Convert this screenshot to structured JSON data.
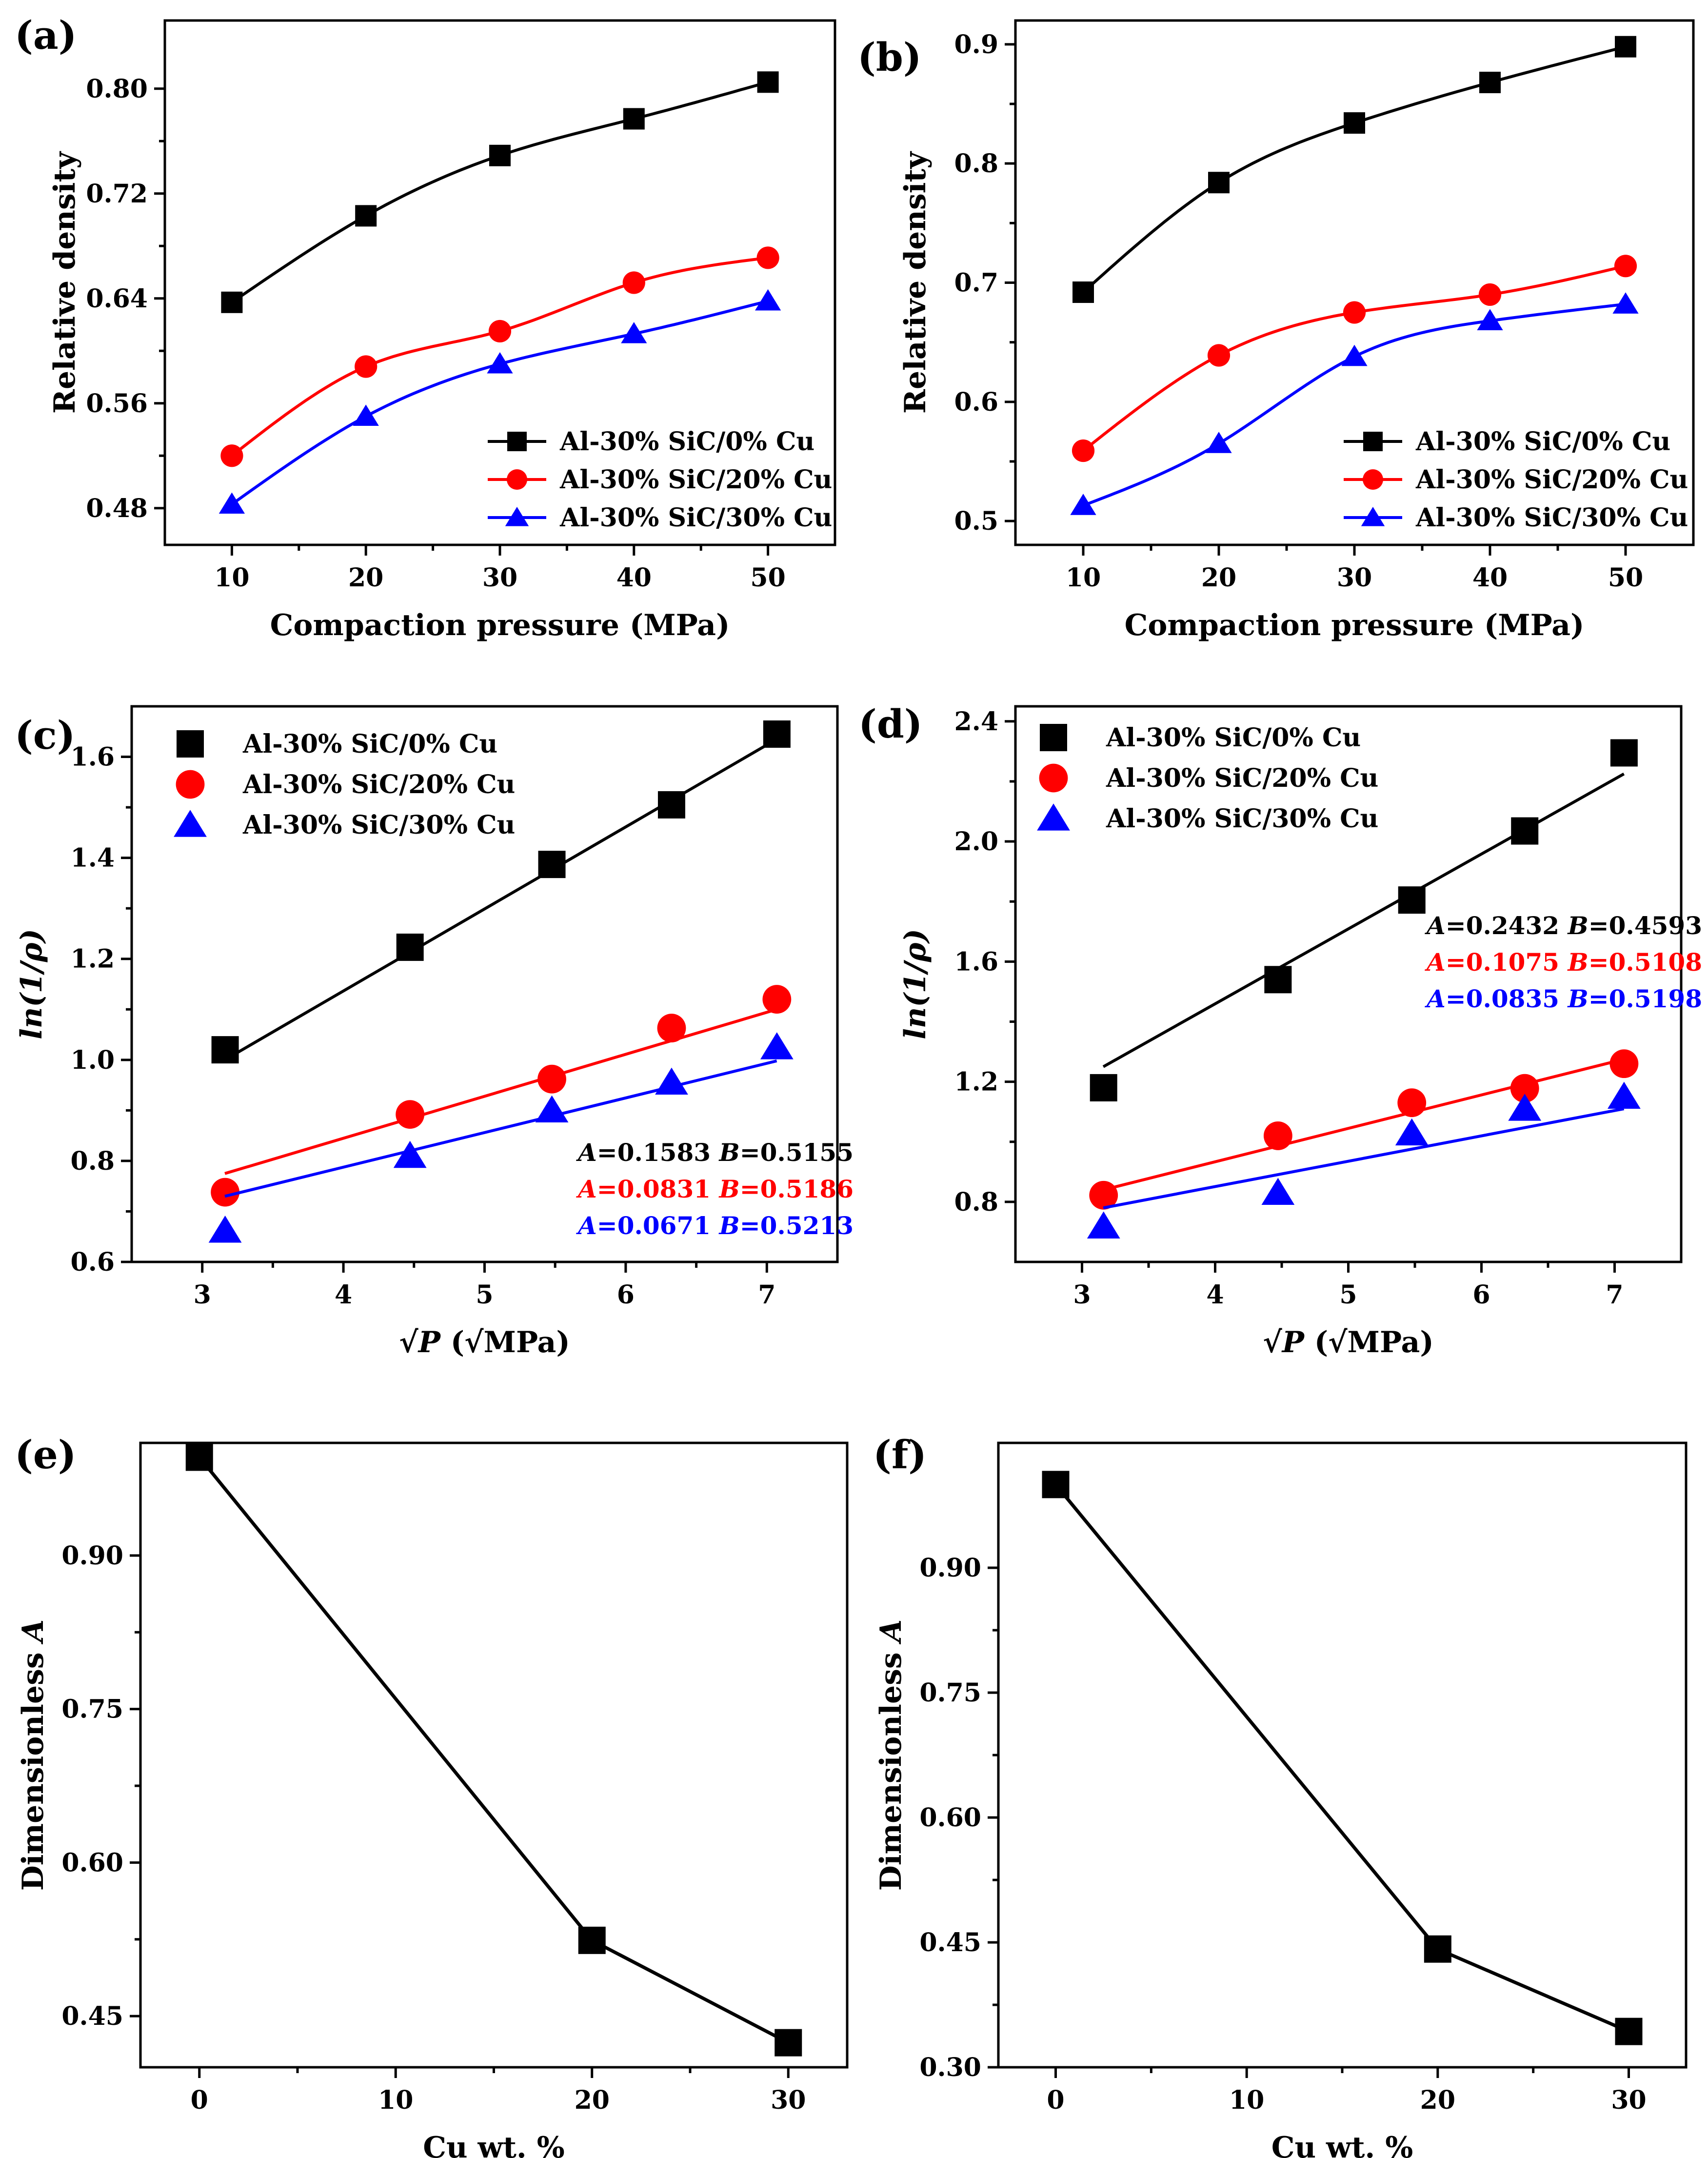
{
  "panels": [
    {
      "id": "a",
      "label": "(a)",
      "kind": "scatter-curve",
      "xlabel": "Compaction pressure (MPa)",
      "ylabel": "Relative density",
      "xlim": [
        5,
        55
      ],
      "ylim": [
        0.452,
        0.852
      ],
      "xticks": [
        "10",
        "20",
        "30",
        "40",
        "50"
      ],
      "yticks": [
        "0.48",
        "0.56",
        "0.64",
        "0.72",
        "0.80"
      ],
      "legend_position": "bottom-right",
      "series": [
        {
          "name": "Al-30% SiC/0% Cu",
          "color": "#000000",
          "marker": "square",
          "x": [
            10,
            20,
            30,
            40,
            50
          ],
          "y": [
            0.637,
            0.703,
            0.749,
            0.777,
            0.805
          ]
        },
        {
          "name": "Al-30% SiC/20% Cu",
          "color": "#ff0000",
          "marker": "circle",
          "x": [
            10,
            20,
            30,
            40,
            50
          ],
          "y": [
            0.52,
            0.588,
            0.615,
            0.652,
            0.671
          ]
        },
        {
          "name": "Al-30% SiC/30% Cu",
          "color": "#0000ff",
          "marker": "triangle",
          "x": [
            10,
            20,
            30,
            40,
            50
          ],
          "y": [
            0.483,
            0.55,
            0.59,
            0.613,
            0.638
          ]
        }
      ]
    },
    {
      "id": "b",
      "label": "(b)",
      "kind": "scatter-curve",
      "xlabel": "Compaction pressure (MPa)",
      "ylabel": "Relative density",
      "xlim": [
        5,
        55
      ],
      "ylim": [
        0.48,
        0.92
      ],
      "xticks": [
        "10",
        "20",
        "30",
        "40",
        "50"
      ],
      "yticks": [
        "0.5",
        "0.6",
        "0.7",
        "0.8",
        "0.9"
      ],
      "legend_position": "bottom-right",
      "series": [
        {
          "name": "Al-30% SiC/0% Cu",
          "color": "#000000",
          "marker": "square",
          "x": [
            10,
            20,
            30,
            40,
            50
          ],
          "y": [
            0.692,
            0.784,
            0.834,
            0.868,
            0.898
          ]
        },
        {
          "name": "Al-30% SiC/20% Cu",
          "color": "#ff0000",
          "marker": "circle",
          "x": [
            10,
            20,
            30,
            40,
            50
          ],
          "y": [
            0.559,
            0.639,
            0.675,
            0.69,
            0.714
          ]
        },
        {
          "name": "Al-30% SiC/30% Cu",
          "color": "#0000ff",
          "marker": "triangle",
          "x": [
            10,
            20,
            30,
            40,
            50
          ],
          "y": [
            0.513,
            0.565,
            0.638,
            0.668,
            0.682
          ]
        }
      ]
    },
    {
      "id": "c",
      "label": "(c)",
      "kind": "scatter-fit",
      "xlabel": "√P (√MPa)",
      "ylabel": "ln(1/ρ)",
      "xlim": [
        2.5,
        7.5
      ],
      "ylim": [
        0.6,
        1.7
      ],
      "xticks": [
        "3",
        "4",
        "5",
        "6",
        "7"
      ],
      "yticks": [
        "0.6",
        "0.8",
        "1.0",
        "1.2",
        "1.4",
        "1.6"
      ],
      "legend_position": "top-left",
      "params_position": "bottom-right",
      "series": [
        {
          "name": "Al-30% SiC/0% Cu",
          "color": "#000000",
          "marker": "square",
          "x": [
            3.162,
            4.472,
            5.477,
            6.325,
            7.071
          ],
          "y": [
            1.02,
            1.223,
            1.387,
            1.505,
            1.645
          ],
          "fit_x": [
            3.16,
            7.07
          ],
          "fit_y": [
            1.0,
            1.635
          ],
          "A": "0.1583",
          "B": "0.5155"
        },
        {
          "name": "Al-30% SiC/20% Cu",
          "color": "#ff0000",
          "marker": "circle",
          "x": [
            3.162,
            4.472,
            5.477,
            6.325,
            7.071
          ],
          "y": [
            0.738,
            0.892,
            0.962,
            1.063,
            1.12
          ],
          "fit_x": [
            3.16,
            7.07
          ],
          "fit_y": [
            0.775,
            1.1
          ],
          "A": "0.0831",
          "B": "0.5186"
        },
        {
          "name": "Al-30% SiC/30% Cu",
          "color": "#0000ff",
          "marker": "triangle",
          "x": [
            3.162,
            4.472,
            5.477,
            6.325,
            7.071
          ],
          "y": [
            0.662,
            0.81,
            0.9,
            0.955,
            1.025
          ],
          "fit_x": [
            3.16,
            7.07
          ],
          "fit_y": [
            0.73,
            0.998
          ],
          "A": "0.0671",
          "B": "0.5213"
        }
      ]
    },
    {
      "id": "d",
      "label": "(d)",
      "kind": "scatter-fit",
      "xlabel": "√P (√MPa)",
      "ylabel": "ln(1/ρ)",
      "xlim": [
        2.5,
        7.5
      ],
      "ylim": [
        0.6,
        2.45
      ],
      "xticks": [
        "3",
        "4",
        "5",
        "6",
        "7"
      ],
      "yticks": [
        "0.8",
        "1.2",
        "1.6",
        "2.0",
        "2.4"
      ],
      "legend_position": "top-left",
      "params_position": "middle-right",
      "series": [
        {
          "name": "Al-30% SiC/0% Cu",
          "color": "#000000",
          "marker": "square",
          "x": [
            3.162,
            4.472,
            5.477,
            6.325,
            7.071
          ],
          "y": [
            1.18,
            1.54,
            1.805,
            2.035,
            2.295
          ],
          "fit_x": [
            3.16,
            7.07
          ],
          "fit_y": [
            1.25,
            2.225
          ],
          "A": "0.2432",
          "B": "0.4593"
        },
        {
          "name": "Al-30% SiC/20% Cu",
          "color": "#ff0000",
          "marker": "circle",
          "x": [
            3.162,
            4.472,
            5.477,
            6.325,
            7.071
          ],
          "y": [
            0.822,
            1.02,
            1.13,
            1.178,
            1.26
          ],
          "fit_x": [
            3.16,
            7.07
          ],
          "fit_y": [
            0.84,
            1.275
          ],
          "A": "0.1075",
          "B": "0.5108"
        },
        {
          "name": "Al-30% SiC/30% Cu",
          "color": "#0000ff",
          "marker": "triangle",
          "x": [
            3.162,
            4.472,
            5.477,
            6.325,
            7.071
          ],
          "y": [
            0.718,
            0.83,
            1.028,
            1.11,
            1.15
          ],
          "fit_x": [
            3.16,
            7.07
          ],
          "fit_y": [
            0.78,
            1.11
          ],
          "A": "0.0835",
          "B": "0.5198"
        }
      ]
    },
    {
      "id": "e",
      "label": "(e)",
      "kind": "line",
      "xlabel": "Cu wt. %",
      "ylabel": "Dimensionless A",
      "xlim": [
        -3,
        33
      ],
      "ylim": [
        0.4,
        1.01
      ],
      "xticks": [
        "0",
        "10",
        "20",
        "30"
      ],
      "yticks": [
        "0.45",
        "0.60",
        "0.75",
        "0.90"
      ],
      "series": [
        {
          "name": "A",
          "color": "#000000",
          "marker": "square",
          "x": [
            0,
            20,
            30
          ],
          "y": [
            0.996,
            0.524,
            0.424
          ]
        }
      ]
    },
    {
      "id": "f",
      "label": "(f)",
      "kind": "line",
      "xlabel": "Cu wt. %",
      "ylabel": "Dimensionless A",
      "xlim": [
        -3,
        33
      ],
      "ylim": [
        0.3,
        1.05
      ],
      "xticks": [
        "0",
        "10",
        "20",
        "30"
      ],
      "yticks": [
        "0.30",
        "0.45",
        "0.60",
        "0.75",
        "0.90"
      ],
      "series": [
        {
          "name": "A",
          "color": "#000000",
          "marker": "square",
          "x": [
            0,
            20,
            30
          ],
          "y": [
            1.0,
            0.442,
            0.343
          ]
        }
      ]
    }
  ],
  "chart_data": [
    {
      "type": "line",
      "title": "(a)",
      "xlabel": "Compaction pressure (MPa)",
      "ylabel": "Relative density",
      "x": [
        10,
        20,
        30,
        40,
        50
      ],
      "ylim": [
        0.452,
        0.852
      ],
      "series": [
        {
          "name": "Al-30% SiC/0% Cu",
          "values": [
            0.637,
            0.703,
            0.749,
            0.777,
            0.805
          ]
        },
        {
          "name": "Al-30% SiC/20% Cu",
          "values": [
            0.52,
            0.588,
            0.615,
            0.652,
            0.671
          ]
        },
        {
          "name": "Al-30% SiC/30% Cu",
          "values": [
            0.483,
            0.55,
            0.59,
            0.613,
            0.638
          ]
        }
      ]
    },
    {
      "type": "line",
      "title": "(b)",
      "xlabel": "Compaction pressure (MPa)",
      "ylabel": "Relative density",
      "x": [
        10,
        20,
        30,
        40,
        50
      ],
      "ylim": [
        0.48,
        0.92
      ],
      "series": [
        {
          "name": "Al-30% SiC/0% Cu",
          "values": [
            0.692,
            0.784,
            0.834,
            0.868,
            0.898
          ]
        },
        {
          "name": "Al-30% SiC/20% Cu",
          "values": [
            0.559,
            0.639,
            0.675,
            0.69,
            0.714
          ]
        },
        {
          "name": "Al-30% SiC/30% Cu",
          "values": [
            0.513,
            0.565,
            0.638,
            0.668,
            0.682
          ]
        }
      ]
    },
    {
      "type": "scatter",
      "title": "(c)",
      "xlabel": "√P (√MPa)",
      "ylabel": "ln(1/ρ)",
      "x": [
        3.162,
        4.472,
        5.477,
        6.325,
        7.071
      ],
      "ylim": [
        0.6,
        1.7
      ],
      "series": [
        {
          "name": "Al-30% SiC/0% Cu",
          "values": [
            1.02,
            1.223,
            1.387,
            1.505,
            1.645
          ]
        },
        {
          "name": "Al-30% SiC/20% Cu",
          "values": [
            0.738,
            0.892,
            0.962,
            1.063,
            1.12
          ]
        },
        {
          "name": "Al-30% SiC/30% Cu",
          "values": [
            0.662,
            0.81,
            0.9,
            0.955,
            1.025
          ]
        }
      ]
    },
    {
      "type": "scatter",
      "title": "(d)",
      "xlabel": "√P (√MPa)",
      "ylabel": "ln(1/ρ)",
      "x": [
        3.162,
        4.472,
        5.477,
        6.325,
        7.071
      ],
      "ylim": [
        0.6,
        2.45
      ],
      "series": [
        {
          "name": "Al-30% SiC/0% Cu",
          "values": [
            1.18,
            1.54,
            1.805,
            2.035,
            2.295
          ]
        },
        {
          "name": "Al-30% SiC/20% Cu",
          "values": [
            0.822,
            1.02,
            1.13,
            1.178,
            1.26
          ]
        },
        {
          "name": "Al-30% SiC/30% Cu",
          "values": [
            0.718,
            0.83,
            1.028,
            1.11,
            1.15
          ]
        }
      ]
    },
    {
      "type": "line",
      "title": "(e)",
      "xlabel": "Cu wt. %",
      "ylabel": "Dimensionless A",
      "x": [
        0,
        20,
        30
      ],
      "ylim": [
        0.4,
        1.01
      ],
      "values": [
        0.996,
        0.524,
        0.424
      ]
    },
    {
      "type": "line",
      "title": "(f)",
      "xlabel": "Cu wt. %",
      "ylabel": "Dimensionless A",
      "x": [
        0,
        20,
        30
      ],
      "ylim": [
        0.3,
        1.05
      ],
      "values": [
        1.0,
        0.442,
        0.343
      ]
    }
  ]
}
